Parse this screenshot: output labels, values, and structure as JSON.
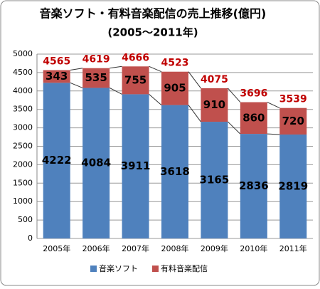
{
  "chart_data": {
    "type": "stacked-bar",
    "title": "音楽ソフト・有料音楽配信の売上推移(億円)",
    "subtitle": "(2005～2011年)",
    "categories": [
      "2005年",
      "2006年",
      "2007年",
      "2008年",
      "2009年",
      "2010年",
      "2011年"
    ],
    "series": [
      {
        "name": "音楽ソフト",
        "color": "#4f81bd",
        "values": [
          4222,
          4084,
          3911,
          3618,
          3165,
          2836,
          2819
        ]
      },
      {
        "name": "有料音楽配信",
        "color": "#c0504d",
        "values": [
          343,
          535,
          755,
          905,
          910,
          860,
          720
        ]
      }
    ],
    "totals": [
      4565,
      4619,
      4666,
      4523,
      4075,
      3696,
      3539
    ],
    "total_color": "#c00000",
    "ylim": [
      0,
      5000
    ],
    "yticks": [
      0,
      500,
      1000,
      1500,
      2000,
      2500,
      3000,
      3500,
      4000,
      4500,
      5000
    ],
    "grid": true,
    "legend": "bottom"
  }
}
